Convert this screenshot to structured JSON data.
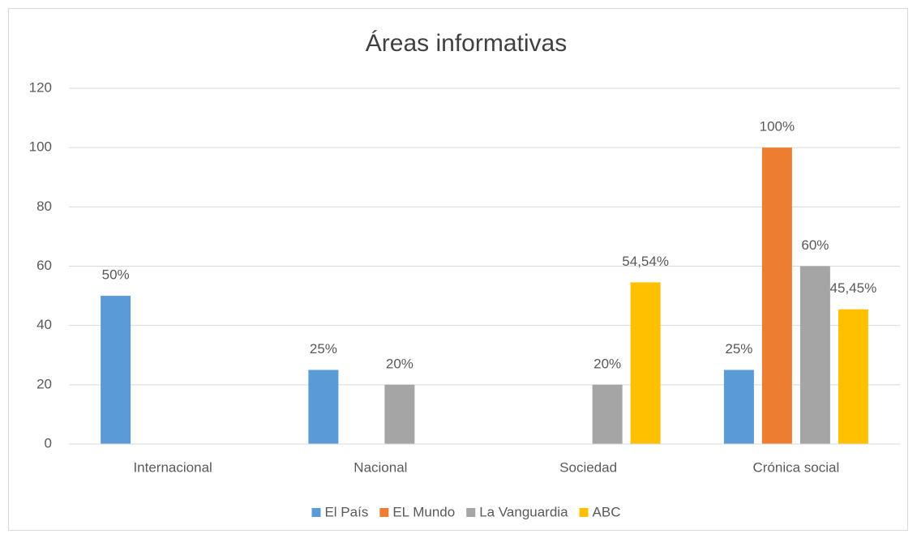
{
  "chart_data": {
    "type": "bar",
    "title": "Áreas informativas",
    "categories": [
      "Internacional",
      "Nacional",
      "Sociedad",
      "Crónica social"
    ],
    "series": [
      {
        "name": "El País",
        "color": "#5b9bd5",
        "values": [
          50,
          25,
          null,
          25
        ],
        "value_labels": [
          "50%",
          "25%",
          null,
          "25%"
        ]
      },
      {
        "name": "EL Mundo",
        "color": "#ed7d31",
        "values": [
          null,
          null,
          null,
          100
        ],
        "value_labels": [
          null,
          null,
          null,
          "100%"
        ]
      },
      {
        "name": "La Vanguardia",
        "color": "#a5a5a5",
        "values": [
          null,
          20,
          20,
          60
        ],
        "value_labels": [
          null,
          "20%",
          "20%",
          "60%"
        ]
      },
      {
        "name": "ABC",
        "color": "#ffc000",
        "values": [
          null,
          null,
          54.54,
          45.45
        ],
        "value_labels": [
          null,
          null,
          "54,54%",
          "45,45%"
        ]
      }
    ],
    "ylim": [
      0,
      120
    ],
    "yticks": [
      0,
      20,
      40,
      60,
      80,
      100,
      120
    ],
    "grid": true,
    "legend": "bottom"
  }
}
